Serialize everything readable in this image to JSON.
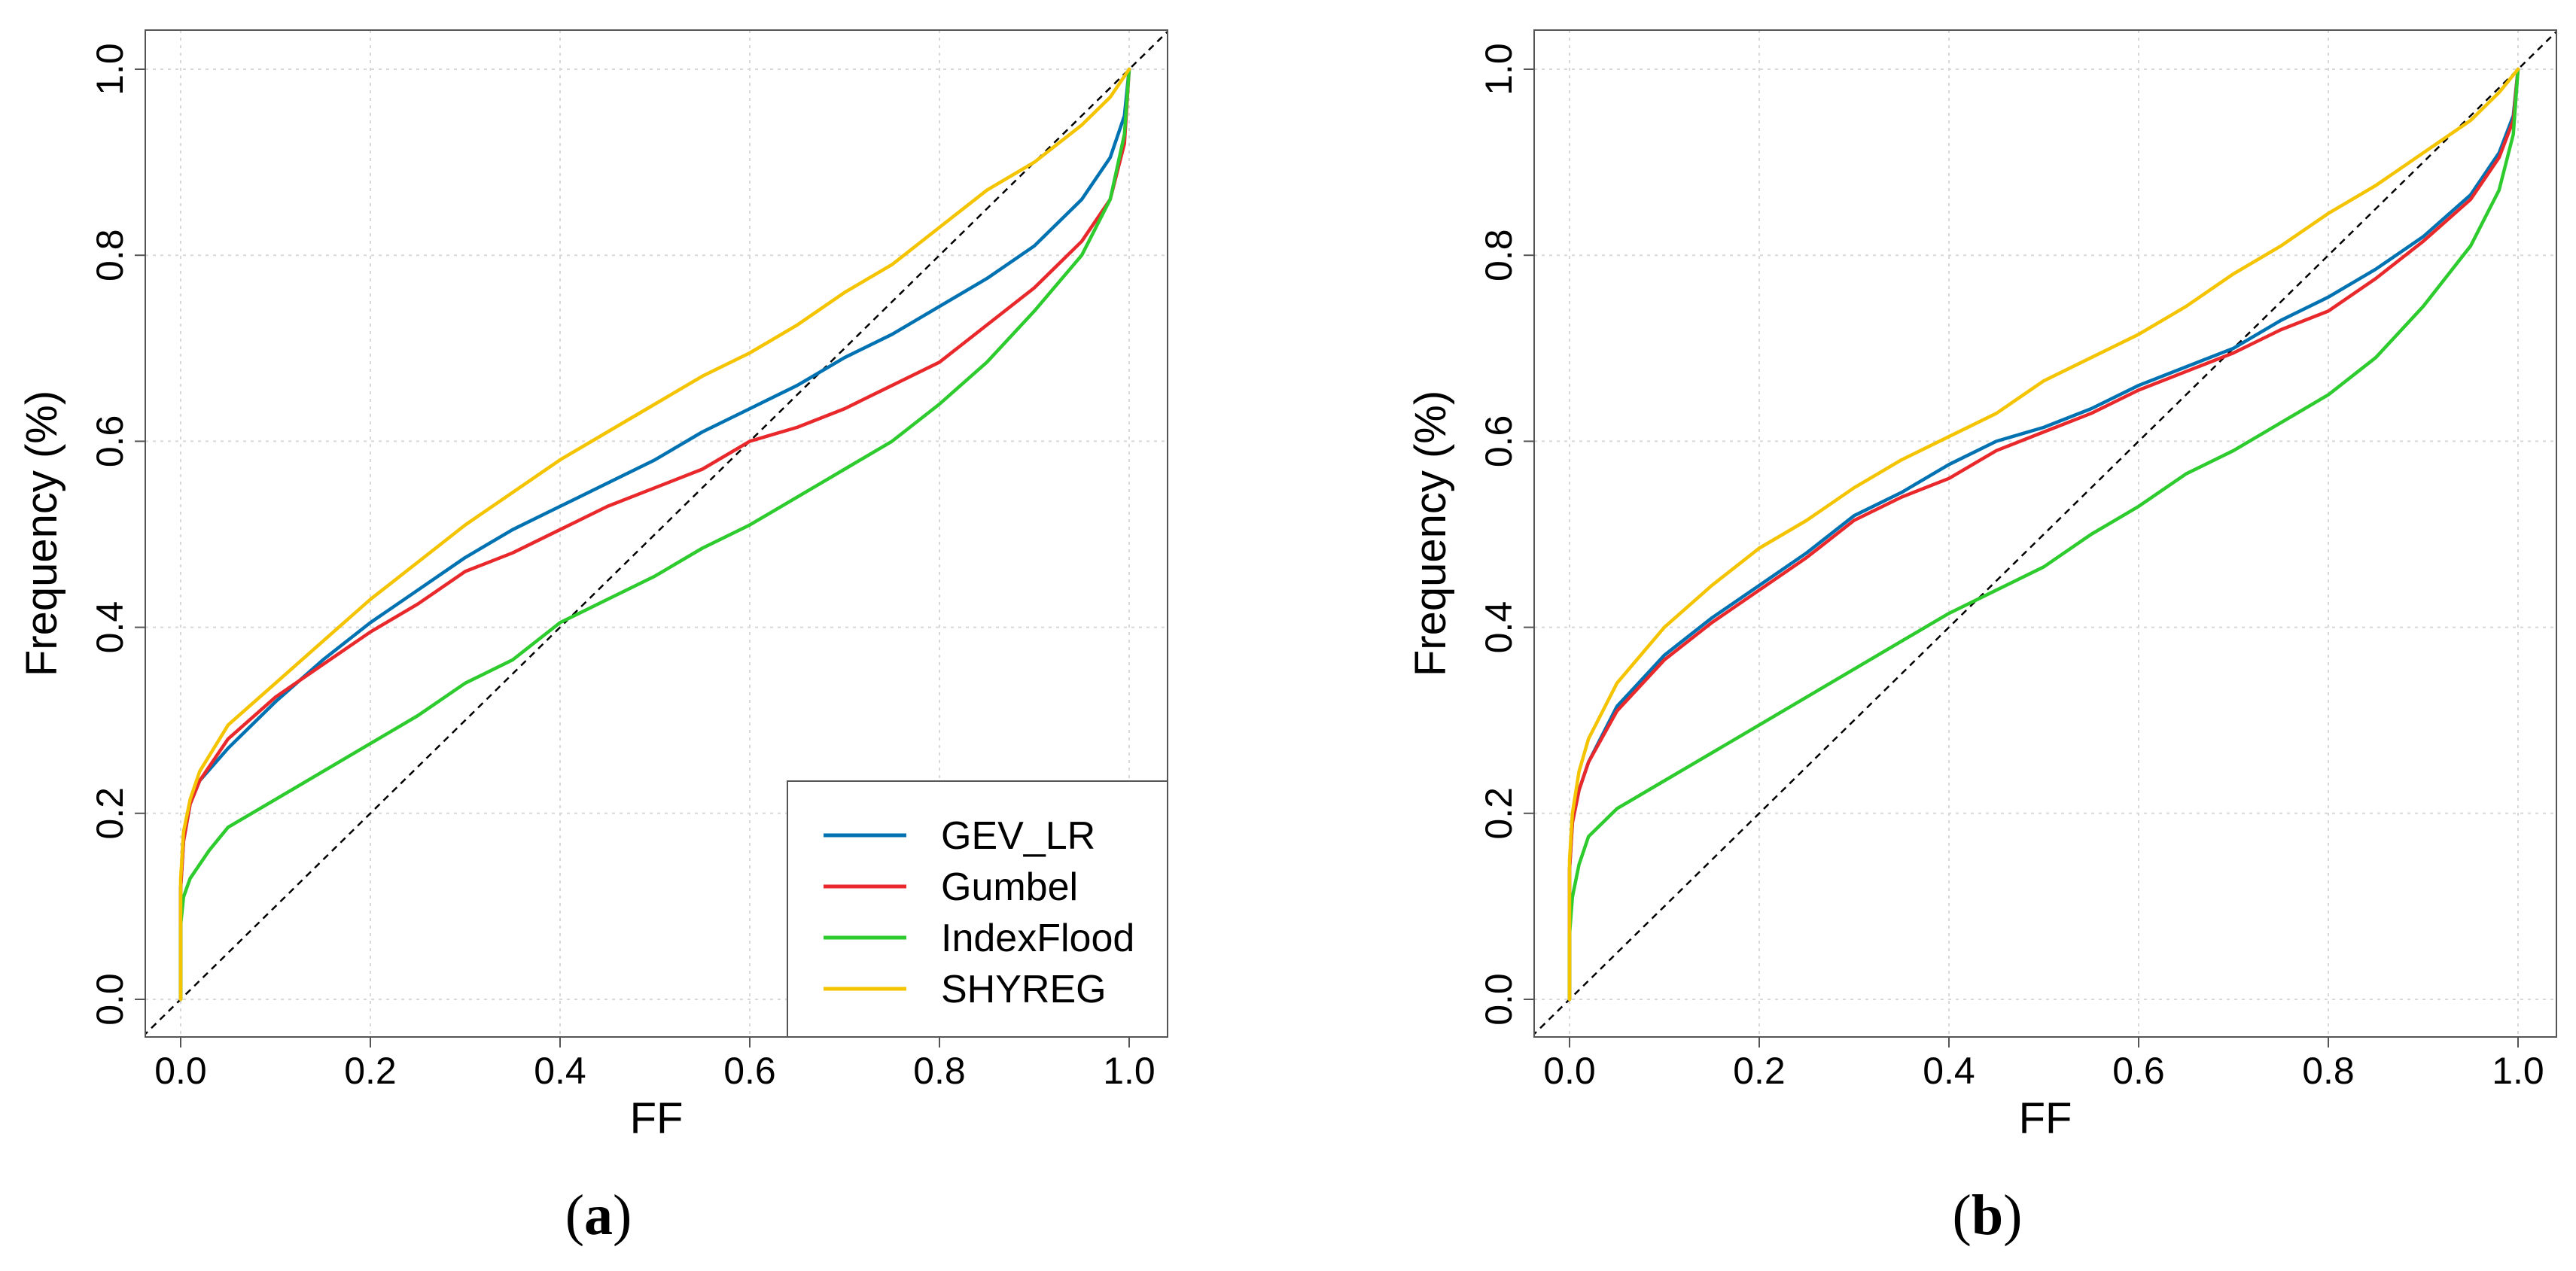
{
  "colors": {
    "GEV_LR": "#0072B2",
    "Gumbel": "#E8282B",
    "IndexFlood": "#2DCB2D",
    "SHYREG": "#F4C400",
    "grid": "#d8d8d8",
    "reference": "#000000"
  },
  "chart_data": [
    {
      "type": "line",
      "panel_label": "a",
      "caption_open": "(",
      "caption_close": ")",
      "xlabel": "FF",
      "ylabel": "Frequency (%)",
      "xlim": [
        0.0,
        1.0
      ],
      "ylim": [
        0.0,
        1.0
      ],
      "xticks": [
        "0.0",
        "0.2",
        "0.4",
        "0.6",
        "0.8",
        "1.0"
      ],
      "yticks": [
        "0.0",
        "0.2",
        "0.4",
        "0.6",
        "0.8",
        "1.0"
      ],
      "grid": true,
      "reference_line": "y = x (dashed)",
      "legend": {
        "placement": "bottom-right",
        "entries": [
          "GEV_LR",
          "Gumbel",
          "IndexFlood",
          "SHYREG"
        ]
      },
      "series": [
        {
          "name": "GEV_LR",
          "points": [
            [
              0,
              0
            ],
            [
              0,
              0.12
            ],
            [
              0.003,
              0.17
            ],
            [
              0.01,
              0.21
            ],
            [
              0.02,
              0.235
            ],
            [
              0.05,
              0.27
            ],
            [
              0.1,
              0.32
            ],
            [
              0.15,
              0.365
            ],
            [
              0.2,
              0.405
            ],
            [
              0.25,
              0.44
            ],
            [
              0.3,
              0.475
            ],
            [
              0.35,
              0.505
            ],
            [
              0.4,
              0.53
            ],
            [
              0.45,
              0.555
            ],
            [
              0.5,
              0.58
            ],
            [
              0.55,
              0.61
            ],
            [
              0.6,
              0.635
            ],
            [
              0.65,
              0.66
            ],
            [
              0.7,
              0.69
            ],
            [
              0.75,
              0.715
            ],
            [
              0.8,
              0.745
            ],
            [
              0.85,
              0.775
            ],
            [
              0.9,
              0.81
            ],
            [
              0.95,
              0.86
            ],
            [
              0.98,
              0.905
            ],
            [
              0.995,
              0.95
            ],
            [
              1.0,
              1.0
            ]
          ]
        },
        {
          "name": "Gumbel",
          "points": [
            [
              0,
              0
            ],
            [
              0,
              0.12
            ],
            [
              0.003,
              0.17
            ],
            [
              0.01,
              0.21
            ],
            [
              0.02,
              0.235
            ],
            [
              0.05,
              0.28
            ],
            [
              0.1,
              0.325
            ],
            [
              0.15,
              0.36
            ],
            [
              0.2,
              0.395
            ],
            [
              0.25,
              0.425
            ],
            [
              0.3,
              0.46
            ],
            [
              0.35,
              0.48
            ],
            [
              0.4,
              0.505
            ],
            [
              0.45,
              0.53
            ],
            [
              0.5,
              0.55
            ],
            [
              0.55,
              0.57
            ],
            [
              0.6,
              0.6
            ],
            [
              0.65,
              0.615
            ],
            [
              0.7,
              0.635
            ],
            [
              0.75,
              0.66
            ],
            [
              0.8,
              0.685
            ],
            [
              0.85,
              0.725
            ],
            [
              0.9,
              0.765
            ],
            [
              0.95,
              0.815
            ],
            [
              0.98,
              0.86
            ],
            [
              0.995,
              0.92
            ],
            [
              1.0,
              1.0
            ]
          ]
        },
        {
          "name": "IndexFlood",
          "points": [
            [
              0,
              0
            ],
            [
              0,
              0.08
            ],
            [
              0.003,
              0.11
            ],
            [
              0.01,
              0.13
            ],
            [
              0.03,
              0.16
            ],
            [
              0.05,
              0.185
            ],
            [
              0.1,
              0.215
            ],
            [
              0.15,
              0.245
            ],
            [
              0.2,
              0.275
            ],
            [
              0.25,
              0.305
            ],
            [
              0.3,
              0.34
            ],
            [
              0.35,
              0.365
            ],
            [
              0.4,
              0.405
            ],
            [
              0.45,
              0.43
            ],
            [
              0.5,
              0.455
            ],
            [
              0.55,
              0.485
            ],
            [
              0.6,
              0.51
            ],
            [
              0.65,
              0.54
            ],
            [
              0.7,
              0.57
            ],
            [
              0.75,
              0.6
            ],
            [
              0.8,
              0.64
            ],
            [
              0.85,
              0.685
            ],
            [
              0.9,
              0.74
            ],
            [
              0.95,
              0.8
            ],
            [
              0.98,
              0.86
            ],
            [
              0.995,
              0.93
            ],
            [
              1.0,
              1.0
            ]
          ]
        },
        {
          "name": "SHYREG",
          "points": [
            [
              0,
              0
            ],
            [
              0,
              0.13
            ],
            [
              0.003,
              0.18
            ],
            [
              0.01,
              0.215
            ],
            [
              0.02,
              0.245
            ],
            [
              0.05,
              0.295
            ],
            [
              0.1,
              0.34
            ],
            [
              0.15,
              0.385
            ],
            [
              0.2,
              0.43
            ],
            [
              0.25,
              0.47
            ],
            [
              0.3,
              0.51
            ],
            [
              0.35,
              0.545
            ],
            [
              0.4,
              0.58
            ],
            [
              0.45,
              0.61
            ],
            [
              0.5,
              0.64
            ],
            [
              0.55,
              0.67
            ],
            [
              0.6,
              0.695
            ],
            [
              0.65,
              0.725
            ],
            [
              0.7,
              0.76
            ],
            [
              0.75,
              0.79
            ],
            [
              0.8,
              0.83
            ],
            [
              0.85,
              0.87
            ],
            [
              0.9,
              0.9
            ],
            [
              0.95,
              0.94
            ],
            [
              0.98,
              0.97
            ],
            [
              1.0,
              1.0
            ]
          ]
        }
      ]
    },
    {
      "type": "line",
      "panel_label": "b",
      "caption_open": "(",
      "caption_close": ")",
      "xlabel": "FF",
      "ylabel": "Frequency (%)",
      "xlim": [
        0.0,
        1.0
      ],
      "ylim": [
        0.0,
        1.0
      ],
      "xticks": [
        "0.0",
        "0.2",
        "0.4",
        "0.6",
        "0.8",
        "1.0"
      ],
      "yticks": [
        "0.0",
        "0.2",
        "0.4",
        "0.6",
        "0.8",
        "1.0"
      ],
      "grid": true,
      "reference_line": "y = x (dashed)",
      "series": [
        {
          "name": "GEV_LR",
          "points": [
            [
              0,
              0
            ],
            [
              0,
              0.14
            ],
            [
              0.003,
              0.19
            ],
            [
              0.01,
              0.225
            ],
            [
              0.02,
              0.255
            ],
            [
              0.05,
              0.315
            ],
            [
              0.1,
              0.37
            ],
            [
              0.15,
              0.41
            ],
            [
              0.2,
              0.445
            ],
            [
              0.25,
              0.48
            ],
            [
              0.3,
              0.52
            ],
            [
              0.35,
              0.545
            ],
            [
              0.4,
              0.575
            ],
            [
              0.45,
              0.6
            ],
            [
              0.5,
              0.615
            ],
            [
              0.55,
              0.635
            ],
            [
              0.6,
              0.66
            ],
            [
              0.65,
              0.68
            ],
            [
              0.7,
              0.7
            ],
            [
              0.75,
              0.73
            ],
            [
              0.8,
              0.755
            ],
            [
              0.85,
              0.785
            ],
            [
              0.9,
              0.82
            ],
            [
              0.95,
              0.865
            ],
            [
              0.98,
              0.91
            ],
            [
              0.995,
              0.95
            ],
            [
              1.0,
              1.0
            ]
          ]
        },
        {
          "name": "Gumbel",
          "points": [
            [
              0,
              0
            ],
            [
              0,
              0.14
            ],
            [
              0.003,
              0.19
            ],
            [
              0.01,
              0.225
            ],
            [
              0.02,
              0.255
            ],
            [
              0.05,
              0.31
            ],
            [
              0.1,
              0.365
            ],
            [
              0.15,
              0.405
            ],
            [
              0.2,
              0.44
            ],
            [
              0.25,
              0.475
            ],
            [
              0.3,
              0.515
            ],
            [
              0.35,
              0.54
            ],
            [
              0.4,
              0.56
            ],
            [
              0.45,
              0.59
            ],
            [
              0.5,
              0.61
            ],
            [
              0.55,
              0.63
            ],
            [
              0.6,
              0.655
            ],
            [
              0.65,
              0.675
            ],
            [
              0.7,
              0.695
            ],
            [
              0.75,
              0.72
            ],
            [
              0.8,
              0.74
            ],
            [
              0.85,
              0.775
            ],
            [
              0.9,
              0.815
            ],
            [
              0.95,
              0.86
            ],
            [
              0.98,
              0.905
            ],
            [
              0.995,
              0.945
            ],
            [
              1.0,
              1.0
            ]
          ]
        },
        {
          "name": "IndexFlood",
          "points": [
            [
              0,
              0
            ],
            [
              0,
              0.07
            ],
            [
              0.003,
              0.11
            ],
            [
              0.01,
              0.145
            ],
            [
              0.02,
              0.175
            ],
            [
              0.05,
              0.205
            ],
            [
              0.1,
              0.235
            ],
            [
              0.15,
              0.265
            ],
            [
              0.2,
              0.295
            ],
            [
              0.25,
              0.325
            ],
            [
              0.3,
              0.355
            ],
            [
              0.35,
              0.385
            ],
            [
              0.4,
              0.415
            ],
            [
              0.45,
              0.44
            ],
            [
              0.5,
              0.465
            ],
            [
              0.55,
              0.5
            ],
            [
              0.6,
              0.53
            ],
            [
              0.65,
              0.565
            ],
            [
              0.7,
              0.59
            ],
            [
              0.75,
              0.62
            ],
            [
              0.8,
              0.65
            ],
            [
              0.85,
              0.69
            ],
            [
              0.9,
              0.745
            ],
            [
              0.95,
              0.81
            ],
            [
              0.98,
              0.87
            ],
            [
              0.995,
              0.93
            ],
            [
              1.0,
              1.0
            ]
          ]
        },
        {
          "name": "SHYREG",
          "points": [
            [
              0,
              0
            ],
            [
              0,
              0.15
            ],
            [
              0.003,
              0.2
            ],
            [
              0.01,
              0.245
            ],
            [
              0.02,
              0.28
            ],
            [
              0.05,
              0.34
            ],
            [
              0.1,
              0.4
            ],
            [
              0.15,
              0.445
            ],
            [
              0.2,
              0.485
            ],
            [
              0.25,
              0.515
            ],
            [
              0.3,
              0.55
            ],
            [
              0.35,
              0.58
            ],
            [
              0.4,
              0.605
            ],
            [
              0.45,
              0.63
            ],
            [
              0.5,
              0.665
            ],
            [
              0.55,
              0.69
            ],
            [
              0.6,
              0.715
            ],
            [
              0.65,
              0.745
            ],
            [
              0.7,
              0.78
            ],
            [
              0.75,
              0.81
            ],
            [
              0.8,
              0.845
            ],
            [
              0.85,
              0.875
            ],
            [
              0.9,
              0.91
            ],
            [
              0.95,
              0.945
            ],
            [
              0.98,
              0.975
            ],
            [
              1.0,
              1.0
            ]
          ]
        }
      ]
    }
  ]
}
